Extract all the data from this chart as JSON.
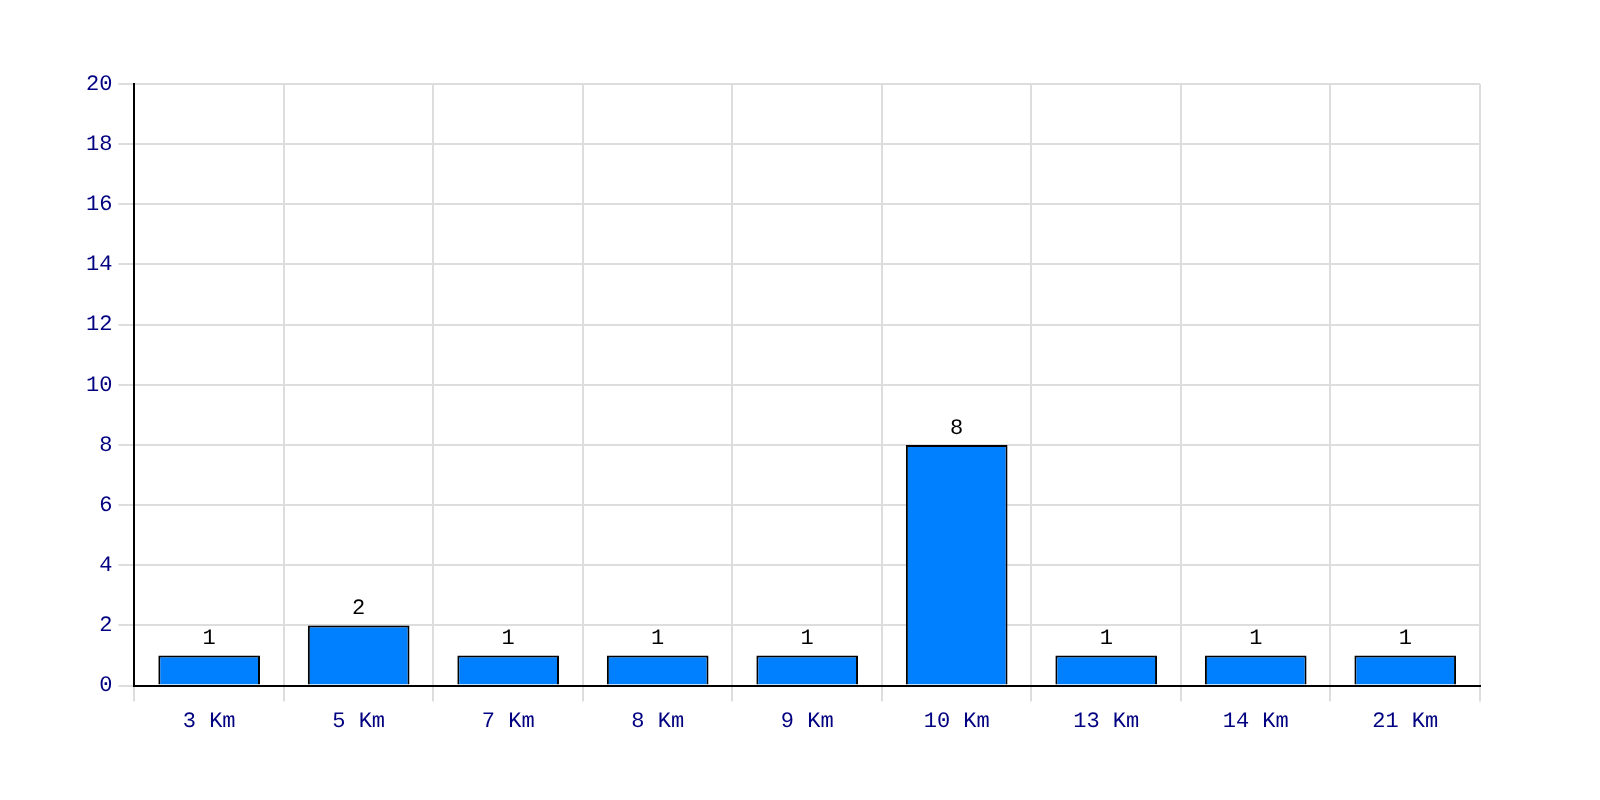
{
  "chart_data": {
    "type": "bar",
    "categories": [
      "3 Km",
      "5 Km",
      "7 Km",
      "8 Km",
      "9 Km",
      "10 Km",
      "13 Km",
      "14 Km",
      "21 Km"
    ],
    "values": [
      1,
      2,
      1,
      1,
      1,
      8,
      1,
      1,
      1
    ],
    "color": "#0080ff",
    "ylim": [
      0,
      20
    ],
    "yticks": [
      0,
      2,
      4,
      6,
      8,
      10,
      12,
      14,
      16,
      18,
      20
    ],
    "grid": true,
    "legend": false,
    "data_labels": true
  }
}
